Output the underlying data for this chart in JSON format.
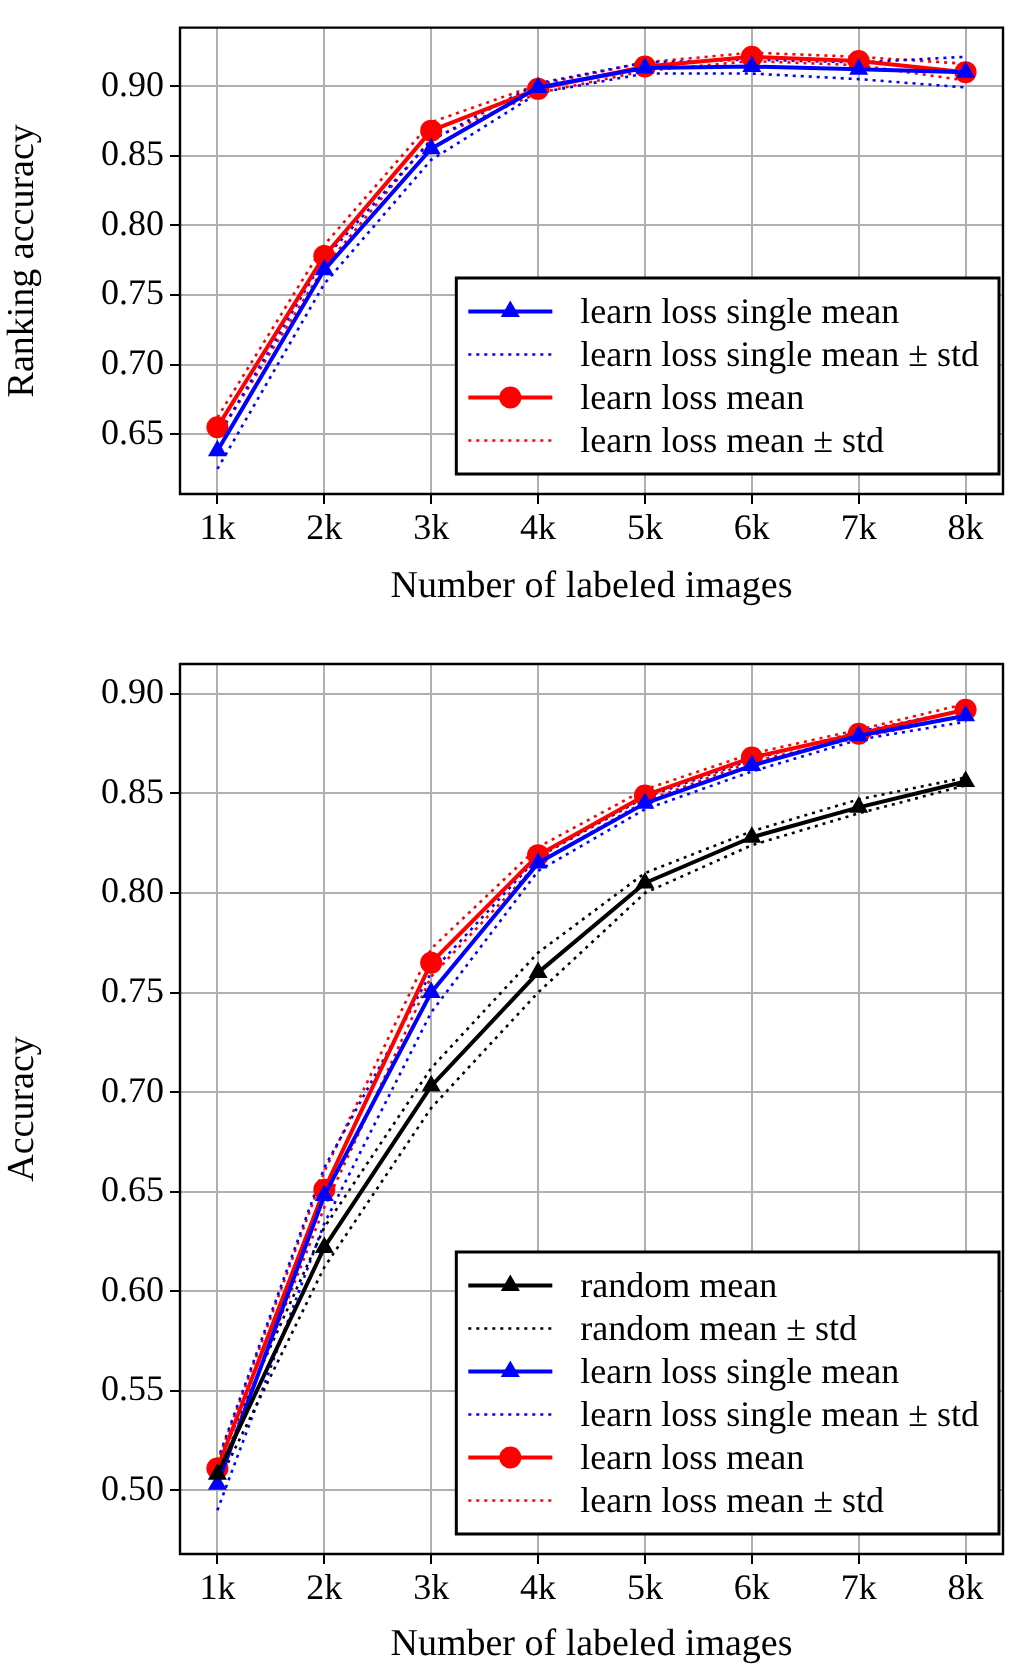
{
  "chart_data": [
    {
      "type": "line",
      "xlabel": "Number of labeled images",
      "ylabel": "Ranking accuracy",
      "x": [
        1000,
        2000,
        3000,
        4000,
        5000,
        6000,
        7000,
        8000
      ],
      "xlim": [
        650,
        8350
      ],
      "xticks": [
        {
          "value": 1000,
          "label": "1k"
        },
        {
          "value": 2000,
          "label": "2k"
        },
        {
          "value": 3000,
          "label": "3k"
        },
        {
          "value": 4000,
          "label": "4k"
        },
        {
          "value": 5000,
          "label": "5k"
        },
        {
          "value": 6000,
          "label": "6k"
        },
        {
          "value": 7000,
          "label": "7k"
        },
        {
          "value": 8000,
          "label": "8k"
        }
      ],
      "ylim": [
        0.607,
        0.942
      ],
      "yticks": [
        {
          "value": 0.65,
          "label": "0.65"
        },
        {
          "value": 0.7,
          "label": "0.70"
        },
        {
          "value": 0.75,
          "label": "0.75"
        },
        {
          "value": 0.8,
          "label": "0.80"
        },
        {
          "value": 0.85,
          "label": "0.85"
        },
        {
          "value": 0.9,
          "label": "0.90"
        }
      ],
      "grid": true,
      "legend": "bottom right",
      "series": [
        {
          "name": "learn loss single mean",
          "color": "#0000ff",
          "marker": "triangle",
          "line_style": "solid",
          "values": [
            0.638,
            0.768,
            0.855,
            0.899,
            0.913,
            0.914,
            0.912,
            0.91
          ]
        },
        {
          "name": "learn loss single mean ± std",
          "color": "#0000ff",
          "marker": "none",
          "line_style": "dotted",
          "values": [
            0.648,
            0.776,
            0.861,
            0.902,
            0.917,
            0.919,
            0.917,
            0.921
          ]
        },
        {
          "color": "#0000ff",
          "marker": "none",
          "line_style": "dotted",
          "values": [
            0.625,
            0.758,
            0.847,
            0.895,
            0.909,
            0.909,
            0.905,
            0.899
          ]
        },
        {
          "name": "learn loss mean",
          "color": "#ff0000",
          "marker": "circle",
          "line_style": "solid",
          "values": [
            0.655,
            0.778,
            0.868,
            0.898,
            0.914,
            0.921,
            0.918,
            0.91
          ]
        },
        {
          "name": "learn loss mean ± std",
          "color": "#ff0000",
          "marker": "none",
          "line_style": "dotted",
          "values": [
            0.662,
            0.786,
            0.874,
            0.901,
            0.917,
            0.924,
            0.921,
            0.916
          ]
        },
        {
          "color": "#ff0000",
          "marker": "none",
          "line_style": "dotted",
          "values": [
            0.648,
            0.77,
            0.862,
            0.895,
            0.911,
            0.918,
            0.915,
            0.904
          ]
        }
      ]
    },
    {
      "type": "line",
      "xlabel": "Number of labeled images",
      "ylabel": "Accuracy",
      "x": [
        1000,
        2000,
        3000,
        4000,
        5000,
        6000,
        7000,
        8000
      ],
      "xlim": [
        650,
        8350
      ],
      "xticks": [
        {
          "value": 1000,
          "label": "1k"
        },
        {
          "value": 2000,
          "label": "2k"
        },
        {
          "value": 3000,
          "label": "3k"
        },
        {
          "value": 4000,
          "label": "4k"
        },
        {
          "value": 5000,
          "label": "5k"
        },
        {
          "value": 6000,
          "label": "6k"
        },
        {
          "value": 7000,
          "label": "7k"
        },
        {
          "value": 8000,
          "label": "8k"
        }
      ],
      "ylim": [
        0.468,
        0.915
      ],
      "yticks": [
        {
          "value": 0.5,
          "label": "0.50"
        },
        {
          "value": 0.55,
          "label": "0.55"
        },
        {
          "value": 0.6,
          "label": "0.60"
        },
        {
          "value": 0.65,
          "label": "0.65"
        },
        {
          "value": 0.7,
          "label": "0.70"
        },
        {
          "value": 0.75,
          "label": "0.75"
        },
        {
          "value": 0.8,
          "label": "0.80"
        },
        {
          "value": 0.85,
          "label": "0.85"
        },
        {
          "value": 0.9,
          "label": "0.90"
        }
      ],
      "grid": true,
      "legend": "bottom right",
      "series": [
        {
          "name": "random mean",
          "color": "#000000",
          "marker": "triangle",
          "line_style": "solid",
          "values": [
            0.508,
            0.622,
            0.703,
            0.76,
            0.805,
            0.828,
            0.843,
            0.856
          ]
        },
        {
          "name": "random mean ± std",
          "color": "#000000",
          "marker": "none",
          "line_style": "dotted",
          "values": [
            0.513,
            0.632,
            0.712,
            0.77,
            0.81,
            0.831,
            0.847,
            0.858
          ]
        },
        {
          "color": "#000000",
          "marker": "none",
          "line_style": "dotted",
          "values": [
            0.503,
            0.612,
            0.692,
            0.75,
            0.8,
            0.824,
            0.84,
            0.854
          ]
        },
        {
          "name": "learn loss single mean",
          "color": "#0000ff",
          "marker": "triangle",
          "line_style": "solid",
          "values": [
            0.503,
            0.648,
            0.75,
            0.815,
            0.845,
            0.864,
            0.879,
            0.889
          ]
        },
        {
          "name": "learn loss single mean ± std",
          "color": "#0000ff",
          "marker": "none",
          "line_style": "dotted",
          "values": [
            0.515,
            0.662,
            0.76,
            0.818,
            0.848,
            0.867,
            0.881,
            0.892
          ]
        },
        {
          "color": "#0000ff",
          "marker": "none",
          "line_style": "dotted",
          "values": [
            0.49,
            0.634,
            0.74,
            0.811,
            0.842,
            0.861,
            0.877,
            0.886
          ]
        },
        {
          "name": "learn loss mean",
          "color": "#ff0000",
          "marker": "circle",
          "line_style": "solid",
          "values": [
            0.511,
            0.651,
            0.765,
            0.819,
            0.849,
            0.868,
            0.88,
            0.892
          ]
        },
        {
          "name": "learn loss mean ± std",
          "color": "#ff0000",
          "marker": "none",
          "line_style": "dotted",
          "values": [
            0.514,
            0.66,
            0.772,
            0.823,
            0.852,
            0.87,
            0.882,
            0.895
          ]
        },
        {
          "color": "#ff0000",
          "marker": "none",
          "line_style": "dotted",
          "values": [
            0.507,
            0.642,
            0.758,
            0.815,
            0.846,
            0.866,
            0.878,
            0.889
          ]
        }
      ]
    }
  ]
}
